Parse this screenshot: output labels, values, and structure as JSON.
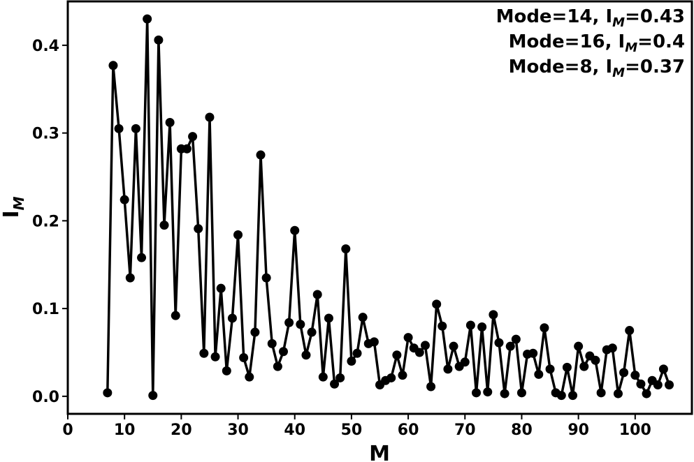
{
  "chart_data": {
    "type": "line",
    "xlabel": "M",
    "ylabel": {
      "main": "I",
      "sub": "M"
    },
    "xlim": [
      0,
      110
    ],
    "ylim": [
      -0.02,
      0.45
    ],
    "xticks": [
      "0",
      "10",
      "20",
      "30",
      "40",
      "50",
      "60",
      "70",
      "80",
      "90",
      "100"
    ],
    "yticks": [
      "0.0",
      "0.1",
      "0.2",
      "0.3",
      "0.4"
    ],
    "grid": false,
    "legend_placement": "top-right",
    "series_color": "#000000",
    "annotations": [
      {
        "prefix": "Mode=14, I",
        "sub": "M",
        "suffix": "=0.43"
      },
      {
        "prefix": "Mode=16, I",
        "sub": "M",
        "suffix": "=0.4"
      },
      {
        "prefix": "Mode=8, I",
        "sub": "M",
        "suffix": "=0.37"
      }
    ],
    "x": [
      7,
      8,
      9,
      10,
      11,
      12,
      13,
      14,
      15,
      16,
      17,
      18,
      19,
      20,
      21,
      22,
      23,
      24,
      25,
      26,
      27,
      28,
      29,
      30,
      31,
      32,
      33,
      34,
      35,
      36,
      37,
      38,
      39,
      40,
      41,
      42,
      43,
      44,
      45,
      46,
      47,
      48,
      49,
      50,
      51,
      52,
      53,
      54,
      55,
      56,
      57,
      58,
      59,
      60,
      61,
      62,
      63,
      64,
      65,
      66,
      67,
      68,
      69,
      70,
      71,
      72,
      73,
      74,
      75,
      76,
      77,
      78,
      79,
      80,
      81,
      82,
      83,
      84,
      85,
      86,
      87,
      88,
      89,
      90,
      91,
      92,
      93,
      94,
      95,
      96,
      97,
      98,
      99,
      100,
      101,
      102,
      103,
      104,
      105,
      106
    ],
    "values": [
      0.004,
      0.377,
      0.305,
      0.224,
      0.135,
      0.305,
      0.158,
      0.43,
      0.001,
      0.406,
      0.195,
      0.312,
      0.092,
      0.282,
      0.282,
      0.296,
      0.191,
      0.049,
      0.318,
      0.045,
      0.123,
      0.029,
      0.089,
      0.184,
      0.044,
      0.022,
      0.073,
      0.275,
      0.135,
      0.06,
      0.034,
      0.051,
      0.084,
      0.189,
      0.082,
      0.047,
      0.073,
      0.116,
      0.022,
      0.089,
      0.014,
      0.021,
      0.168,
      0.04,
      0.049,
      0.09,
      0.06,
      0.062,
      0.013,
      0.018,
      0.021,
      0.047,
      0.024,
      0.067,
      0.055,
      0.05,
      0.058,
      0.011,
      0.105,
      0.08,
      0.031,
      0.057,
      0.034,
      0.039,
      0.081,
      0.004,
      0.079,
      0.005,
      0.093,
      0.061,
      0.003,
      0.057,
      0.065,
      0.004,
      0.048,
      0.049,
      0.025,
      0.078,
      0.031,
      0.004,
      0.001,
      0.033,
      0.001,
      0.057,
      0.034,
      0.046,
      0.041,
      0.004,
      0.053,
      0.055,
      0.003,
      0.027,
      0.075,
      0.024,
      0.014,
      0.003,
      0.018,
      0.013,
      0.031,
      0.013
    ]
  }
}
